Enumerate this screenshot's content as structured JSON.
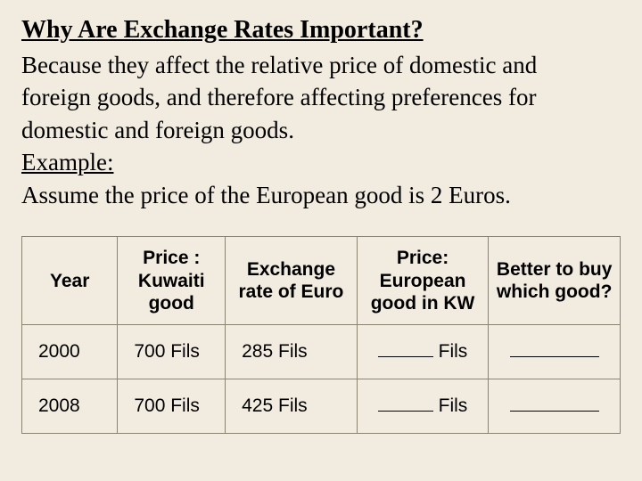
{
  "title": "Why Are Exchange Rates Important?",
  "paragraph_lines": [
    "Because they affect the relative price of domestic and",
    " foreign goods, and therefore affecting preferences for",
    "domestic and foreign goods."
  ],
  "example_label": "Example:",
  "assumption": "Assume the price of the European good is 2 Euros.",
  "table": {
    "columns": [
      "Year",
      "Price : Kuwaiti good",
      "Exchange rate of Euro",
      "Price: European good in KW",
      "Better to buy which good?"
    ],
    "column_widths_pct": [
      16,
      18,
      22,
      22,
      22
    ],
    "header_fontsize": 21,
    "cell_fontsize": 21,
    "border_color": "#8a8370",
    "background_color": "#f2ece0",
    "font_family": "Arial",
    "rows": [
      {
        "year": "2000",
        "price_kuwaiti": "700 Fils",
        "rate": "285 Fils",
        "price_eu_suffix": " Fils"
      },
      {
        "year": "2008",
        "price_kuwaiti": "700 Fils",
        "rate": "425 Fils",
        "price_eu_suffix": " Fils"
      }
    ]
  },
  "colors": {
    "background": "#f2ece0",
    "text": "#000000",
    "table_border": "#8a8370"
  },
  "typography": {
    "title_fontsize": 28,
    "body_fontsize": 27,
    "title_weight": "bold",
    "body_font": "Times New Roman",
    "table_font": "Arial"
  }
}
